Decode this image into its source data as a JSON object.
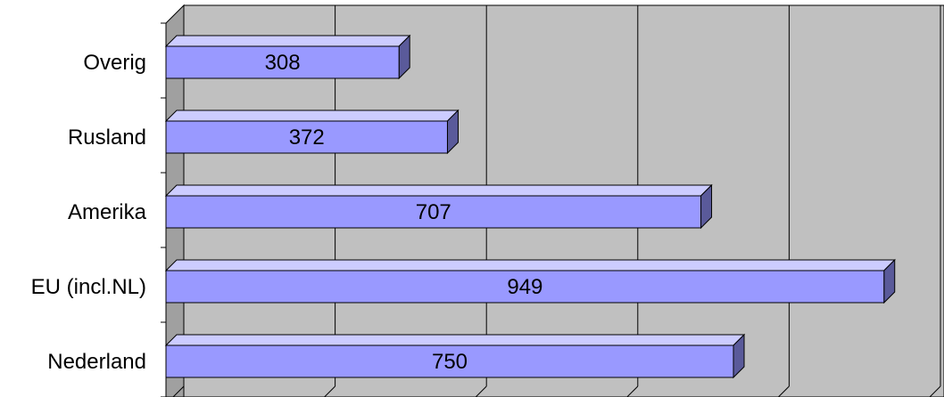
{
  "chart_data": {
    "type": "bar",
    "orientation": "horizontal",
    "style": "3d",
    "categories": [
      "Overig",
      "Rusland",
      "Amerika",
      "EU (incl.NL)",
      "Nederland"
    ],
    "values": [
      308,
      372,
      707,
      949,
      750
    ],
    "title": "",
    "xlabel": "",
    "ylabel": "",
    "xlim": [
      0,
      1000
    ],
    "grid": true,
    "data_labels": true,
    "legend": "none"
  },
  "colors": {
    "bar_front": "#9999ff",
    "bar_top": "#ccccff",
    "bar_side": "#5a5a9a",
    "wall": "#c0c0c0",
    "side_wall": "#a0a0a0",
    "gridline": "#000000"
  }
}
